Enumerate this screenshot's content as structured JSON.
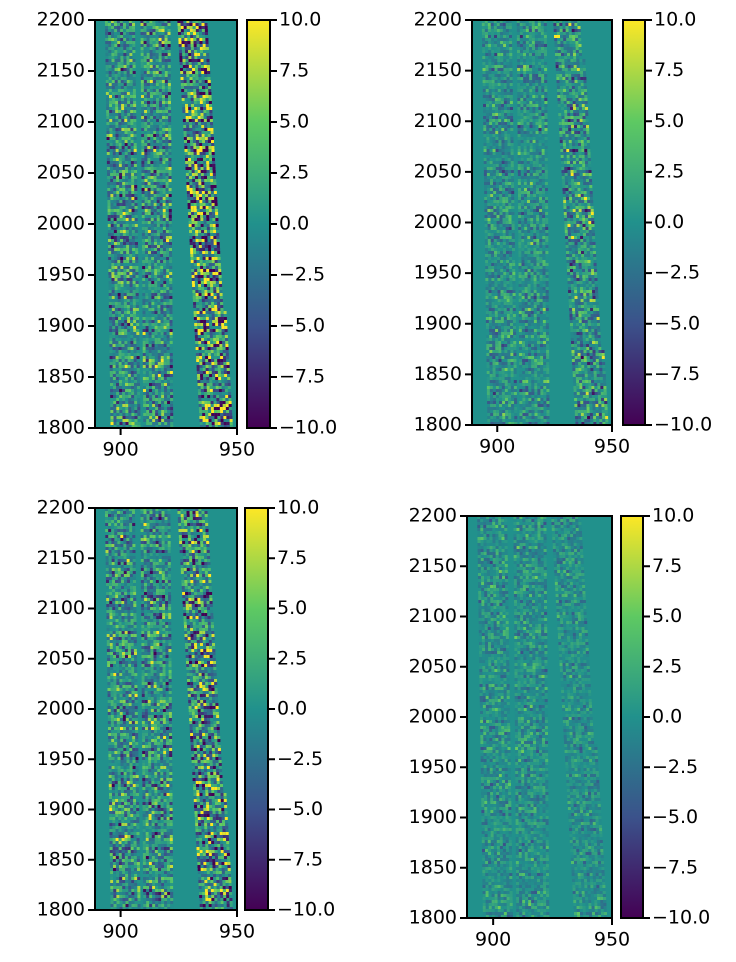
{
  "chart_data": [
    {
      "type": "heatmap",
      "colormap": "viridis",
      "xlim": [
        889,
        950
      ],
      "ylim": [
        1800,
        2200
      ],
      "xticks": [
        900,
        950
      ],
      "yticks": [
        1800,
        1850,
        1900,
        1950,
        2000,
        2050,
        2100,
        2150,
        2200
      ],
      "colorbar": {
        "lim": [
          -10,
          10
        ],
        "ticks": [
          {
            "value": -10,
            "label": "−10.0"
          },
          {
            "value": -7.5,
            "label": "−7.5"
          },
          {
            "value": -5,
            "label": "−5.0"
          },
          {
            "value": -2.5,
            "label": "−2.5"
          },
          {
            "value": 0,
            "label": "0.0"
          },
          {
            "value": 2.5,
            "label": "2.5"
          },
          {
            "value": 5,
            "label": "5.0"
          },
          {
            "value": 7.5,
            "label": "7.5"
          },
          {
            "value": 10,
            "label": "10.0"
          }
        ]
      }
    },
    {
      "type": "heatmap",
      "colormap": "viridis",
      "xlim": [
        889,
        950
      ],
      "ylim": [
        1800,
        2200
      ],
      "xticks": [
        900,
        950
      ],
      "yticks": [
        1800,
        1850,
        1900,
        1950,
        2000,
        2050,
        2100,
        2150,
        2200
      ],
      "colorbar": {
        "lim": [
          -10,
          10
        ],
        "ticks": [
          {
            "value": -10,
            "label": "−10.0"
          },
          {
            "value": -7.5,
            "label": "−7.5"
          },
          {
            "value": -5,
            "label": "−5.0"
          },
          {
            "value": -2.5,
            "label": "−2.5"
          },
          {
            "value": 0,
            "label": "0.0"
          },
          {
            "value": 2.5,
            "label": "2.5"
          },
          {
            "value": 5,
            "label": "5.0"
          },
          {
            "value": 7.5,
            "label": "7.5"
          },
          {
            "value": 10,
            "label": "10.0"
          }
        ]
      }
    },
    {
      "type": "heatmap",
      "colormap": "viridis",
      "xlim": [
        889,
        950
      ],
      "ylim": [
        1800,
        2200
      ],
      "xticks": [
        900,
        950
      ],
      "yticks": [
        1800,
        1850,
        1900,
        1950,
        2000,
        2050,
        2100,
        2150,
        2200
      ],
      "colorbar": {
        "lim": [
          -10,
          10
        ],
        "ticks": [
          {
            "value": -10,
            "label": "−10.0"
          },
          {
            "value": -7.5,
            "label": "−7.5"
          },
          {
            "value": -5,
            "label": "−5.0"
          },
          {
            "value": -2.5,
            "label": "−2.5"
          },
          {
            "value": 0,
            "label": "0.0"
          },
          {
            "value": 2.5,
            "label": "2.5"
          },
          {
            "value": 5,
            "label": "5.0"
          },
          {
            "value": 7.5,
            "label": "7.5"
          },
          {
            "value": 10,
            "label": "10.0"
          }
        ]
      }
    },
    {
      "type": "heatmap",
      "colormap": "viridis",
      "xlim": [
        889,
        950
      ],
      "ylim": [
        1800,
        2200
      ],
      "xticks": [
        900,
        950
      ],
      "yticks": [
        1800,
        1850,
        1900,
        1950,
        2000,
        2050,
        2100,
        2150,
        2200
      ],
      "colorbar": {
        "lim": [
          -10,
          10
        ],
        "ticks": [
          {
            "value": -10,
            "label": "−10.0"
          },
          {
            "value": -7.5,
            "label": "−7.5"
          },
          {
            "value": -5,
            "label": "−5.0"
          },
          {
            "value": -2.5,
            "label": "−2.5"
          },
          {
            "value": 0,
            "label": "0.0"
          },
          {
            "value": 2.5,
            "label": "2.5"
          },
          {
            "value": 5,
            "label": "5.0"
          },
          {
            "value": 7.5,
            "label": "7.5"
          },
          {
            "value": 10,
            "label": "10.0"
          }
        ]
      }
    }
  ]
}
